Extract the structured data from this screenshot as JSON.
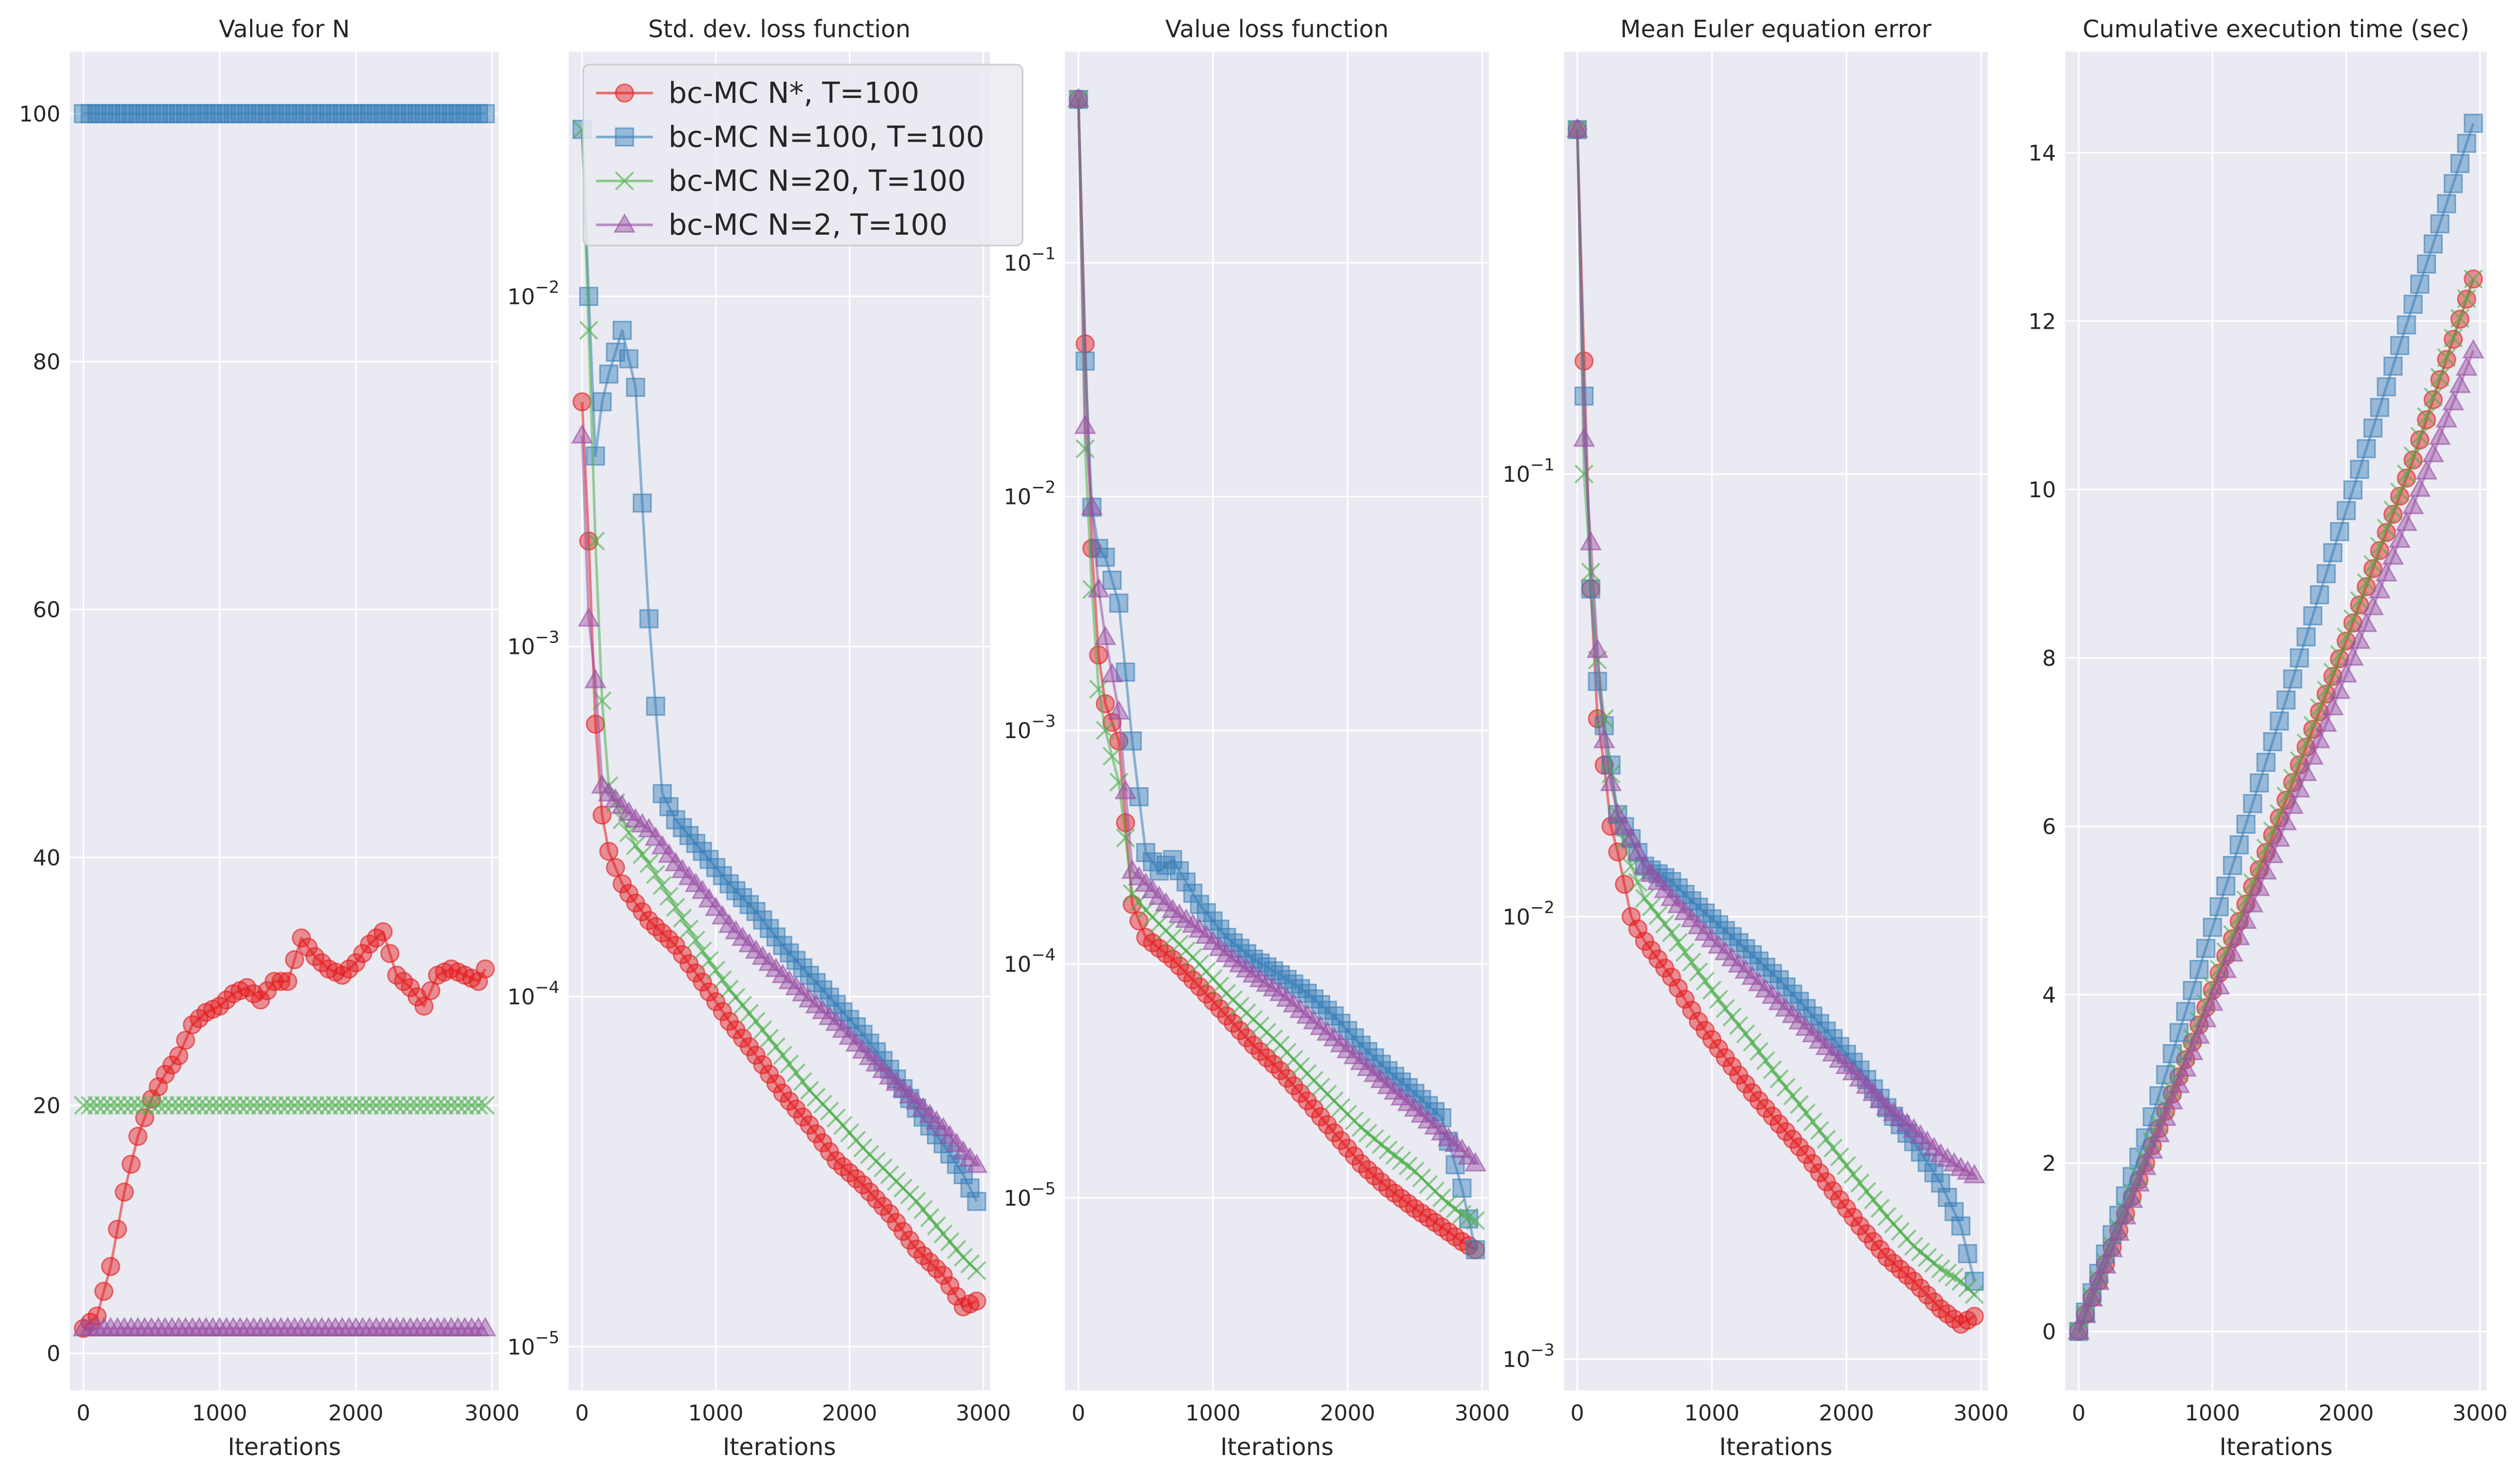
{
  "figure": {
    "background": "#ffffff",
    "panel_background": "#eaeaf2",
    "grid_color": "#ffffff"
  },
  "series_styles": [
    {
      "name": "bc-MC N*, T=100",
      "color": "#e41a1c",
      "marker": "circle"
    },
    {
      "name": "bc-MC N=100, T=100",
      "color": "#377eb8",
      "marker": "square"
    },
    {
      "name": "bc-MC N=20, T=100",
      "color": "#4daf4a",
      "marker": "x"
    },
    {
      "name": "bc-MC N=2, T=100",
      "color": "#984ea3",
      "marker": "triangle"
    }
  ],
  "legend": {
    "placement": "top-left of panel 2"
  },
  "chart_data": [
    {
      "type": "line",
      "title": "Value for N",
      "xlabel": "Iterations",
      "ylabel": "",
      "xlim": [
        -100,
        3050
      ],
      "ylim": [
        -3,
        105
      ],
      "yscale": "linear",
      "xticks": [
        0,
        1000,
        2000,
        3000
      ],
      "xtick_labels": [
        "0",
        "1000",
        "2000",
        "3000"
      ],
      "yticks": [
        0,
        20,
        40,
        60,
        80,
        100
      ],
      "ytick_labels": [
        "0",
        "20",
        "40",
        "60",
        "80",
        "100"
      ],
      "series": [
        {
          "name": "bc-MC N*, T=100",
          "x": [
            0,
            100,
            200,
            300,
            400,
            500,
            600,
            700,
            800,
            900,
            1000,
            1100,
            1200,
            1300,
            1400,
            1500,
            1600,
            1700,
            1800,
            1900,
            2000,
            2100,
            2200,
            2300,
            2400,
            2500,
            2600,
            2700,
            2800,
            2900,
            2950
          ],
          "values": [
            2,
            3,
            7,
            13,
            17.5,
            20.5,
            22.5,
            24,
            26.5,
            27.5,
            28,
            29,
            29.5,
            28.5,
            30,
            30,
            33.5,
            32,
            31,
            30.5,
            31.5,
            33,
            34,
            30.5,
            29.5,
            28,
            30.5,
            31,
            30.5,
            30,
            31
          ]
        },
        {
          "name": "bc-MC N=100, T=100",
          "x": [
            0,
            500,
            1000,
            1500,
            2000,
            2500,
            2950
          ],
          "values": [
            100,
            100,
            100,
            100,
            100,
            100,
            100
          ]
        },
        {
          "name": "bc-MC N=20, T=100",
          "x": [
            0,
            500,
            1000,
            1500,
            2000,
            2500,
            2950
          ],
          "values": [
            20,
            20,
            20,
            20,
            20,
            20,
            20
          ]
        },
        {
          "name": "bc-MC N=2, T=100",
          "x": [
            0,
            500,
            1000,
            1500,
            2000,
            2500,
            2950
          ],
          "values": [
            2,
            2,
            2,
            2,
            2,
            2,
            2
          ]
        }
      ]
    },
    {
      "type": "line",
      "title": "Std. dev. loss function",
      "xlabel": "Iterations",
      "ylabel": "",
      "xlim": [
        -100,
        3050
      ],
      "ylim": [
        7.5e-06,
        0.05
      ],
      "yscale": "log",
      "xticks": [
        0,
        1000,
        2000,
        3000
      ],
      "xtick_labels": [
        "0",
        "1000",
        "2000",
        "3000"
      ],
      "yticks": [
        1e-05,
        0.0001,
        0.001,
        0.01
      ],
      "ytick_labels": [
        "10^-5",
        "10^-4",
        "10^-3",
        "10^-2"
      ],
      "series": [
        {
          "name": "bc-MC N*, T=100",
          "x": [
            0,
            50,
            100,
            150,
            200,
            300,
            400,
            500,
            700,
            900,
            1100,
            1300,
            1500,
            1700,
            1900,
            2100,
            2300,
            2500,
            2700,
            2850,
            2950
          ],
          "values": [
            0.005,
            0.002,
            0.0006,
            0.00033,
            0.00026,
            0.00021,
            0.000185,
            0.000165,
            0.00014,
            0.00011,
            8.5e-05,
            6.8e-05,
            5.3e-05,
            4.3e-05,
            3.4e-05,
            2.9e-05,
            2.4e-05,
            1.9e-05,
            1.6e-05,
            1.3e-05,
            1.35e-05
          ]
        },
        {
          "name": "bc-MC N=100, T=100",
          "x": [
            0,
            50,
            100,
            150,
            200,
            300,
            400,
            500,
            600,
            700,
            900,
            1100,
            1300,
            1500,
            1700,
            1900,
            2100,
            2300,
            2500,
            2700,
            2850,
            2950
          ],
          "values": [
            0.03,
            0.01,
            0.0035,
            0.005,
            0.006,
            0.008,
            0.0055,
            0.0012,
            0.00038,
            0.00032,
            0.00026,
            0.00021,
            0.000175,
            0.00014,
            0.000115,
            9.5e-05,
            7.8e-05,
            6.2e-05,
            4.8e-05,
            3.8e-05,
            3.1e-05,
            2.6e-05
          ]
        },
        {
          "name": "bc-MC N=20, T=100",
          "x": [
            0,
            50,
            100,
            150,
            200,
            300,
            400,
            500,
            700,
            900,
            1100,
            1300,
            1500,
            1700,
            1900,
            2100,
            2300,
            2500,
            2700,
            2850,
            2950
          ],
          "values": [
            0.03,
            0.008,
            0.002,
            0.0007,
            0.0004,
            0.00032,
            0.00027,
            0.00024,
            0.00018,
            0.000135,
            0.000105,
            8.5e-05,
            6.8e-05,
            5.4e-05,
            4.5e-05,
            3.7e-05,
            3.1e-05,
            2.6e-05,
            2.1e-05,
            1.8e-05,
            1.65e-05
          ]
        },
        {
          "name": "bc-MC N=2, T=100",
          "x": [
            0,
            50,
            100,
            150,
            200,
            300,
            400,
            500,
            700,
            900,
            1100,
            1300,
            1500,
            1700,
            1900,
            2100,
            2300,
            2500,
            2700,
            2850,
            2950
          ],
          "values": [
            0.004,
            0.0012,
            0.0008,
            0.0004,
            0.00038,
            0.00035,
            0.00032,
            0.0003,
            0.00024,
            0.0002,
            0.00016,
            0.000135,
            0.000115,
            9.8e-05,
            8.4e-05,
            7e-05,
            5.9e-05,
            5e-05,
            4.2e-05,
            3.6e-05,
            3.3e-05
          ]
        }
      ]
    },
    {
      "type": "line",
      "title": "Value loss function",
      "xlabel": "Iterations",
      "ylabel": "",
      "xlim": [
        -100,
        3050
      ],
      "ylim": [
        1.5e-06,
        0.8
      ],
      "yscale": "log",
      "xticks": [
        0,
        1000,
        2000,
        3000
      ],
      "xtick_labels": [
        "0",
        "1000",
        "2000",
        "3000"
      ],
      "yticks": [
        1e-05,
        0.0001,
        0.001,
        0.01,
        0.1
      ],
      "ytick_labels": [
        "10^-5",
        "10^-4",
        "10^-3",
        "10^-2",
        "10^-1"
      ],
      "series": [
        {
          "name": "bc-MC N*, T=100",
          "x": [
            0,
            50,
            100,
            150,
            200,
            300,
            400,
            500,
            700,
            900,
            1100,
            1300,
            1500,
            1700,
            1900,
            2100,
            2300,
            2500,
            2700,
            2850,
            2950
          ],
          "values": [
            0.5,
            0.045,
            0.006,
            0.0021,
            0.0013,
            0.0009,
            0.00018,
            0.00013,
            0.000105,
            8e-05,
            6e-05,
            4.5e-05,
            3.5e-05,
            2.6e-05,
            1.9e-05,
            1.4e-05,
            1.1e-05,
            9e-06,
            7.5e-06,
            6.5e-06,
            6e-06
          ]
        },
        {
          "name": "bc-MC N=100, T=100",
          "x": [
            0,
            50,
            100,
            150,
            200,
            300,
            400,
            500,
            600,
            700,
            900,
            1100,
            1300,
            1500,
            1700,
            1900,
            2100,
            2300,
            2500,
            2700,
            2850,
            2950
          ],
          "values": [
            0.5,
            0.038,
            0.009,
            0.006,
            0.0055,
            0.0035,
            0.0009,
            0.0003,
            0.00025,
            0.00028,
            0.00018,
            0.00013,
            0.000105,
            9e-05,
            7.5e-05,
            6e-05,
            4.5e-05,
            3.5e-05,
            2.8e-05,
            2.2e-05,
            1.1e-05,
            6e-06
          ]
        },
        {
          "name": "bc-MC N=20, T=100",
          "x": [
            0,
            50,
            100,
            150,
            200,
            300,
            400,
            500,
            700,
            900,
            1100,
            1300,
            1500,
            1700,
            1900,
            2100,
            2300,
            2500,
            2700,
            2850,
            2950
          ],
          "values": [
            0.5,
            0.016,
            0.004,
            0.0015,
            0.001,
            0.0006,
            0.0002,
            0.00017,
            0.00013,
            0.0001,
            7.5e-05,
            5.8e-05,
            4.5e-05,
            3.4e-05,
            2.6e-05,
            2e-05,
            1.6e-05,
            1.3e-05,
            1e-05,
            8.5e-06,
            8e-06
          ]
        },
        {
          "name": "bc-MC N=2, T=100",
          "x": [
            0,
            50,
            100,
            150,
            200,
            300,
            400,
            500,
            700,
            900,
            1100,
            1300,
            1500,
            1700,
            1900,
            2100,
            2300,
            2500,
            2700,
            2850,
            2950
          ],
          "values": [
            0.5,
            0.02,
            0.009,
            0.004,
            0.0025,
            0.0012,
            0.00025,
            0.00022,
            0.00017,
            0.00014,
            0.00011,
            9e-05,
            7.5e-05,
            6e-05,
            4.8e-05,
            3.8e-05,
            3e-05,
            2.4e-05,
            1.9e-05,
            1.6e-05,
            1.4e-05
          ]
        }
      ]
    },
    {
      "type": "line",
      "title": "Mean Euler equation error",
      "xlabel": "Iterations",
      "ylabel": "",
      "xlim": [
        -100,
        3050
      ],
      "ylim": [
        0.00085,
        0.9
      ],
      "yscale": "log",
      "xticks": [
        0,
        1000,
        2000,
        3000
      ],
      "xtick_labels": [
        "0",
        "1000",
        "2000",
        "3000"
      ],
      "yticks": [
        0.001,
        0.01,
        0.1
      ],
      "ytick_labels": [
        "10^-3",
        "10^-2",
        "10^-1"
      ],
      "series": [
        {
          "name": "bc-MC N*, T=100",
          "x": [
            0,
            50,
            100,
            150,
            200,
            250,
            300,
            400,
            500,
            700,
            900,
            1100,
            1300,
            1500,
            1700,
            1900,
            2100,
            2300,
            2500,
            2700,
            2850,
            2950
          ],
          "values": [
            0.6,
            0.18,
            0.055,
            0.028,
            0.022,
            0.016,
            0.014,
            0.01,
            0.0088,
            0.0073,
            0.0058,
            0.0048,
            0.004,
            0.0034,
            0.0029,
            0.0024,
            0.002,
            0.0017,
            0.0015,
            0.0013,
            0.0012,
            0.00125
          ]
        },
        {
          "name": "bc-MC N=100, T=100",
          "x": [
            0,
            50,
            100,
            150,
            200,
            250,
            300,
            400,
            500,
            700,
            900,
            1100,
            1300,
            1500,
            1700,
            1900,
            2100,
            2300,
            2500,
            2700,
            2850,
            2950
          ],
          "values": [
            0.6,
            0.15,
            0.055,
            0.034,
            0.027,
            0.022,
            0.017,
            0.015,
            0.013,
            0.012,
            0.0105,
            0.0093,
            0.0082,
            0.0072,
            0.0062,
            0.0053,
            0.0045,
            0.0037,
            0.0031,
            0.0025,
            0.002,
            0.0015
          ]
        },
        {
          "name": "bc-MC N=20, T=100",
          "x": [
            0,
            50,
            100,
            150,
            200,
            250,
            300,
            400,
            500,
            700,
            900,
            1100,
            1300,
            1500,
            1700,
            1900,
            2100,
            2300,
            2500,
            2700,
            2850,
            2950
          ],
          "values": [
            0.6,
            0.1,
            0.06,
            0.038,
            0.028,
            0.021,
            0.017,
            0.013,
            0.011,
            0.0092,
            0.0075,
            0.0062,
            0.0052,
            0.0043,
            0.0036,
            0.003,
            0.0025,
            0.0021,
            0.0018,
            0.0016,
            0.0015,
            0.0014
          ]
        },
        {
          "name": "bc-MC N=2, T=100",
          "x": [
            0,
            50,
            100,
            150,
            200,
            250,
            300,
            400,
            500,
            700,
            900,
            1100,
            1300,
            1500,
            1700,
            1900,
            2100,
            2300,
            2500,
            2700,
            2850,
            2950
          ],
          "values": [
            0.6,
            0.12,
            0.07,
            0.04,
            0.025,
            0.02,
            0.017,
            0.015,
            0.013,
            0.011,
            0.0095,
            0.0083,
            0.0073,
            0.0064,
            0.0056,
            0.0049,
            0.0043,
            0.0037,
            0.0033,
            0.0029,
            0.0027,
            0.0026
          ]
        }
      ]
    },
    {
      "type": "line",
      "title": "Cumulative execution time (sec)",
      "xlabel": "Iterations",
      "ylabel": "",
      "xlim": [
        -100,
        3050
      ],
      "ylim": [
        -0.7,
        15.2
      ],
      "yscale": "linear",
      "xticks": [
        0,
        1000,
        2000,
        3000
      ],
      "xtick_labels": [
        "0",
        "1000",
        "2000",
        "3000"
      ],
      "yticks": [
        0,
        2,
        4,
        6,
        8,
        10,
        12,
        14
      ],
      "ytick_labels": [
        "0",
        "2",
        "4",
        "6",
        "8",
        "10",
        "12",
        "14"
      ],
      "series": [
        {
          "name": "bc-MC N*, T=100",
          "x": [
            0,
            500,
            1000,
            1500,
            2000,
            2500,
            2950
          ],
          "values": [
            0,
            2.0,
            4.05,
            6.1,
            8.2,
            10.35,
            12.5
          ]
        },
        {
          "name": "bc-MC N=100, T=100",
          "x": [
            0,
            500,
            1000,
            1500,
            2000,
            2500,
            2950
          ],
          "values": [
            0,
            2.3,
            4.8,
            7.25,
            9.75,
            12.2,
            14.35
          ]
        },
        {
          "name": "bc-MC N=20, T=100",
          "x": [
            0,
            500,
            1000,
            1500,
            2000,
            2500,
            2950
          ],
          "values": [
            0,
            2.05,
            4.1,
            6.15,
            8.25,
            10.4,
            12.5
          ]
        },
        {
          "name": "bc-MC N=2, T=100",
          "x": [
            0,
            500,
            1000,
            1500,
            2000,
            2500,
            2950
          ],
          "values": [
            0,
            1.95,
            3.9,
            5.85,
            7.8,
            9.8,
            11.65
          ]
        }
      ]
    }
  ]
}
